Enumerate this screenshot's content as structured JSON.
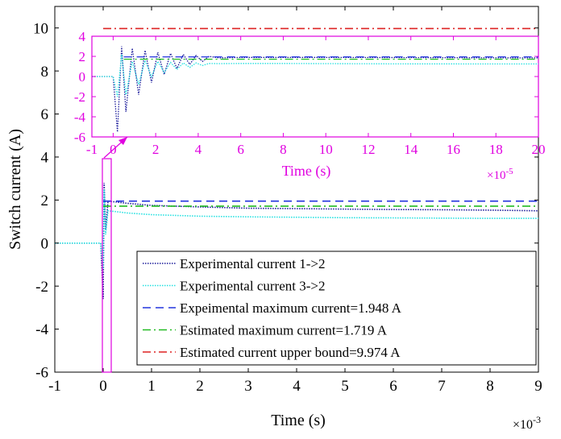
{
  "chart_data": [
    {
      "type": "line",
      "title": "",
      "xlabel": "Time (s)",
      "ylabel": "Switch current (A)",
      "x_unit_multiplier": "×10",
      "x_unit_exponent": "-3",
      "xlim": [
        -1,
        9
      ],
      "ylim": [
        -6,
        11
      ],
      "xticks": [
        -1,
        0,
        1,
        2,
        3,
        4,
        5,
        6,
        7,
        8,
        9
      ],
      "yticks": [
        -6,
        -4,
        -2,
        0,
        2,
        4,
        6,
        8,
        10
      ],
      "grid": false,
      "legend_position": "bottom-right",
      "series": [
        {
          "name": "Experimental current 1->2",
          "color": "#1a1a9a",
          "style": "dotted",
          "x": [
            -1,
            -0.05,
            0,
            0.02,
            0.05,
            0.1,
            0.3,
            0.5,
            1,
            2,
            3,
            4,
            5,
            6,
            7,
            8,
            9
          ],
          "y": [
            0,
            0,
            -2.6,
            2.8,
            0.6,
            1.95,
            1.9,
            1.85,
            1.75,
            1.68,
            1.62,
            1.6,
            1.58,
            1.56,
            1.55,
            1.53,
            1.5
          ]
        },
        {
          "name": "Experimental current 3->2",
          "color": "#22e0e0",
          "style": "dotted",
          "x": [
            -1,
            -0.05,
            0,
            0.02,
            0.05,
            0.1,
            0.3,
            0.5,
            1,
            2,
            3,
            4,
            5,
            6,
            7,
            8,
            9
          ],
          "y": [
            0,
            0,
            -1.2,
            2.5,
            0.4,
            1.5,
            1.45,
            1.4,
            1.32,
            1.25,
            1.22,
            1.2,
            1.18,
            1.17,
            1.16,
            1.15,
            1.15
          ]
        },
        {
          "name": "Expeimental maximum current=1.948 A",
          "color": "#2233dd",
          "style": "dashed",
          "x": [
            0,
            9
          ],
          "y": [
            1.948,
            1.948
          ]
        },
        {
          "name": "Estimated maximum current=1.719 A",
          "color": "#22bb22",
          "style": "dashdot",
          "x": [
            0,
            9
          ],
          "y": [
            1.719,
            1.719
          ]
        },
        {
          "name": "Estimated current upper bound=9.974 A",
          "color": "#dd2222",
          "style": "dashdot",
          "x": [
            0,
            9
          ],
          "y": [
            9.974,
            9.974
          ]
        }
      ]
    },
    {
      "type": "line",
      "title": "",
      "xlabel": "Time (s)",
      "ylabel": "",
      "x_unit_multiplier": "×10",
      "x_unit_exponent": "-5",
      "xlim": [
        -1,
        20
      ],
      "ylim": [
        -6,
        4
      ],
      "xticks": [
        -1,
        0,
        2,
        4,
        6,
        8,
        10,
        12,
        14,
        16,
        18,
        20
      ],
      "yticks": [
        -6,
        -4,
        -2,
        0,
        2,
        4
      ],
      "grid": false,
      "axis_color": "#e000e0",
      "series": [
        {
          "color": "#1a1a9a",
          "style": "dotted",
          "x": [
            -1,
            0,
            0.2,
            0.4,
            0.6,
            0.9,
            1.2,
            1.5,
            1.8,
            2.1,
            2.4,
            2.7,
            3.0,
            3.3,
            3.6,
            3.9,
            4.2,
            4.5,
            5,
            6,
            8,
            10,
            14,
            20
          ],
          "y": [
            0,
            0,
            -5.5,
            3.0,
            -3.5,
            2.8,
            -1.8,
            2.6,
            -0.6,
            2.4,
            0.2,
            2.3,
            0.8,
            2.2,
            1.2,
            2.1,
            1.5,
            2.0,
            1.85,
            1.9,
            1.9,
            1.9,
            1.88,
            1.85
          ]
        },
        {
          "color": "#22e0e0",
          "style": "dotted",
          "x": [
            -1,
            0,
            0.2,
            0.4,
            0.6,
            0.9,
            1.2,
            1.5,
            1.8,
            2.1,
            2.4,
            2.7,
            3.0,
            3.3,
            3.6,
            3.9,
            4.2,
            4.5,
            5,
            6,
            8,
            10,
            14,
            20
          ],
          "y": [
            0,
            0,
            -2.0,
            2.2,
            -1.8,
            1.5,
            -0.8,
            1.6,
            0.0,
            1.5,
            0.4,
            1.4,
            0.7,
            1.35,
            0.9,
            1.35,
            1.1,
            1.3,
            1.28,
            1.3,
            1.3,
            1.28,
            1.26,
            1.25
          ]
        },
        {
          "color": "#2233dd",
          "style": "dashed",
          "x": [
            0.5,
            20
          ],
          "y": [
            1.948,
            1.948
          ]
        },
        {
          "color": "#22bb22",
          "style": "dashdot",
          "x": [
            0.5,
            20
          ],
          "y": [
            1.719,
            1.719
          ]
        }
      ]
    }
  ]
}
